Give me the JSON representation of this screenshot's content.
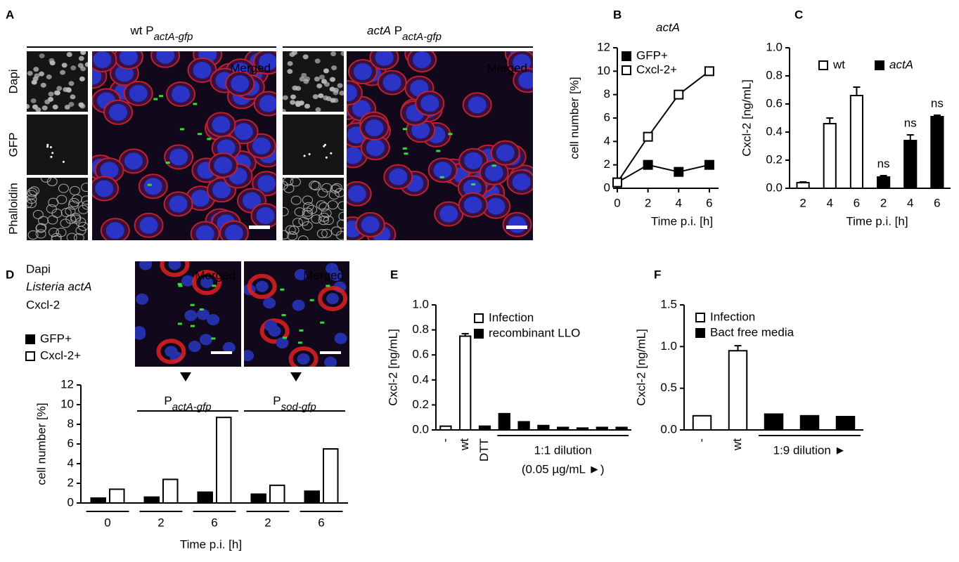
{
  "panel_labels": [
    "A",
    "B",
    "C",
    "D",
    "E",
    "F"
  ],
  "panel_a": {
    "headers": [
      [
        "wt P",
        "actA-gfp"
      ],
      [
        "actA",
        " P",
        "actA-gfp"
      ]
    ],
    "channels": [
      "Dapi",
      "GFP",
      "Phalloidin"
    ],
    "merged": [
      "Merged",
      "Merged"
    ]
  },
  "panel_d": {
    "stains": [
      "Dapi",
      "Listeria actA",
      "Cxcl-2"
    ],
    "merged": [
      "Merged",
      "Merged"
    ]
  },
  "chart_data": [
    {
      "type": "line",
      "title": "actA",
      "xlabel": "Time p.i. [h]",
      "ylabel": "cell number [%]",
      "x": [
        0,
        2,
        4,
        6
      ],
      "series": [
        {
          "name": "GFP+",
          "color": "#000000",
          "values": [
            0.5,
            2,
            1.4,
            2
          ]
        },
        {
          "name": "Cxcl-2+",
          "color": "#ffffff",
          "values": [
            0.5,
            4.4,
            8,
            10
          ]
        }
      ],
      "xlim": [
        0,
        6.6
      ],
      "xticks": [
        0,
        2,
        4,
        6
      ],
      "ylim": [
        0,
        12
      ],
      "yticks": [
        0,
        2,
        4,
        6,
        8,
        10,
        12
      ]
    },
    {
      "type": "bar",
      "xlabel": "Time p.i. [h]",
      "ylabel": "Cxcl-2 [ng/mL]",
      "categories": [
        "2",
        "4",
        "6",
        "2",
        "4",
        "6"
      ],
      "series": [
        {
          "name": "wt",
          "color": "#ffffff",
          "values": [
            0.04,
            0.46,
            0.66,
            null,
            null,
            null
          ],
          "errors": [
            0.005,
            0.04,
            0.06,
            null,
            null,
            null
          ]
        },
        {
          "name": "actA",
          "color": "#000000",
          "values": [
            null,
            null,
            null,
            0.08,
            0.34,
            0.51
          ],
          "errors": [
            null,
            null,
            null,
            0.01,
            0.04,
            0.01
          ]
        }
      ],
      "annotations": [
        "ns",
        "ns",
        "ns"
      ],
      "ylim": [
        0,
        1
      ],
      "yticks": [
        {
          "value": 0,
          "label": "0.0"
        },
        0.2,
        0.4,
        0.6,
        0.8,
        {
          "value": 1,
          "label": "1.0"
        }
      ]
    },
    {
      "type": "bar",
      "xlabel": "Time p.i. [h]",
      "ylabel": "cell number [%]",
      "categories": [
        "0",
        "2",
        "6",
        "2",
        "6"
      ],
      "series": [
        {
          "name": "GFP+",
          "color": "#000000",
          "values": [
            0.5,
            0.6,
            1.1,
            0.9,
            1.2
          ]
        },
        {
          "name": "Cxcl-2+",
          "color": "#ffffff",
          "values": [
            1.4,
            2.4,
            8.7,
            1.8,
            5.5
          ]
        }
      ],
      "group_labels": [
        [
          "P",
          "actA-gfp"
        ],
        [
          "P",
          "sod-gfp"
        ]
      ],
      "ylim": [
        0,
        12
      ],
      "yticks": [
        0,
        2,
        4,
        6,
        8,
        10,
        12
      ]
    },
    {
      "type": "bar",
      "ylabel": "Cxcl-2 [ng/mL]",
      "categories": [
        "-",
        "wt",
        "DTT",
        null,
        null,
        null,
        null,
        null,
        null,
        null
      ],
      "series": [
        {
          "name": "Infection",
          "color": "#ffffff",
          "values": [
            0.03,
            0.75,
            null,
            null,
            null,
            null,
            null,
            null,
            null,
            null
          ],
          "errors": [
            null,
            0.02,
            null,
            null,
            null,
            null,
            null,
            null,
            null,
            null
          ]
        },
        {
          "name": "recombinant LLO",
          "color": "#000000",
          "values": [
            null,
            null,
            0.03,
            0.13,
            0.065,
            0.035,
            0.02,
            0.015,
            0.02,
            0.02
          ]
        }
      ],
      "group_label": [
        "1:1 dilution",
        "(0.05 µg/mL ►)"
      ],
      "ylim": [
        0,
        1
      ],
      "yticks": [
        {
          "value": 0,
          "label": "0.0"
        },
        0.2,
        0.4,
        0.6,
        0.8,
        {
          "value": 1,
          "label": "1.0"
        }
      ]
    },
    {
      "type": "bar",
      "ylabel": "Cxcl-2 [ng/mL]",
      "categories": [
        "-",
        "wt",
        null,
        null,
        null
      ],
      "series": [
        {
          "name": "Infection",
          "color": "#ffffff",
          "values": [
            0.17,
            0.95,
            null,
            null,
            null
          ],
          "errors": [
            null,
            0.06,
            null,
            null,
            null
          ]
        },
        {
          "name": "Bact free media",
          "color": "#000000",
          "values": [
            null,
            null,
            0.19,
            0.17,
            0.16
          ]
        }
      ],
      "group_label": [
        "1:9 dilution ►"
      ],
      "ylim": [
        0,
        1.5
      ],
      "yticks": [
        {
          "value": 0,
          "label": "0.0"
        },
        0.5,
        {
          "value": 1,
          "label": "1.0"
        },
        1.5
      ]
    }
  ]
}
